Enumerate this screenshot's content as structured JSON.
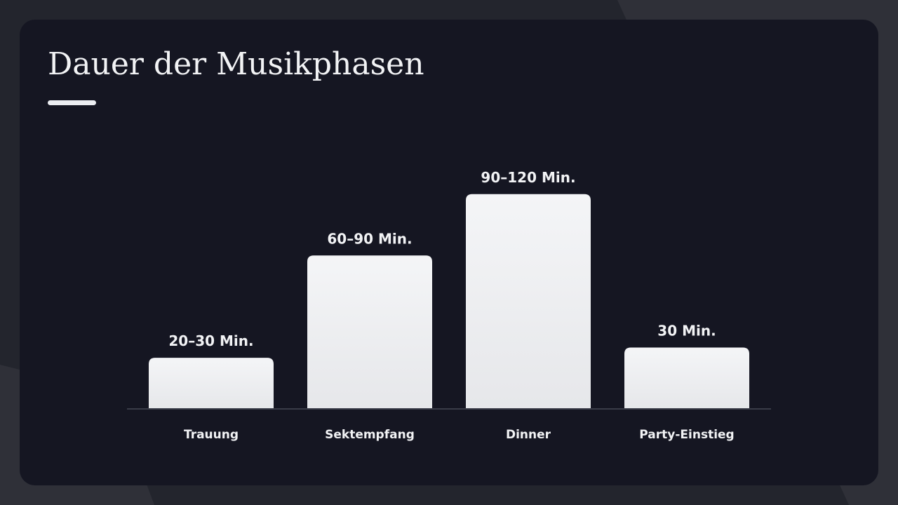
{
  "slide": {
    "title": "Dauer der Musikphasen"
  },
  "colors": {
    "background": "#23252d",
    "card": "#151622",
    "bar_top": "#f4f5f7",
    "bar_bottom": "#e6e7ea",
    "text": "#f2f3f5",
    "axis": "#3a3c48"
  },
  "chart_data": {
    "type": "bar",
    "title": "Dauer der Musikphasen",
    "categories": [
      "Trauung",
      "Sektempfang",
      "Dinner",
      "Party-Einstieg"
    ],
    "values": [
      25,
      75,
      105,
      30
    ],
    "value_labels": [
      "20–30 Min.",
      "60–90 Min.",
      "90–120 Min.",
      "30 Min."
    ],
    "xlabel": "",
    "ylabel": "",
    "ylim": [
      0,
      120
    ],
    "grid": false,
    "legend": "none"
  }
}
